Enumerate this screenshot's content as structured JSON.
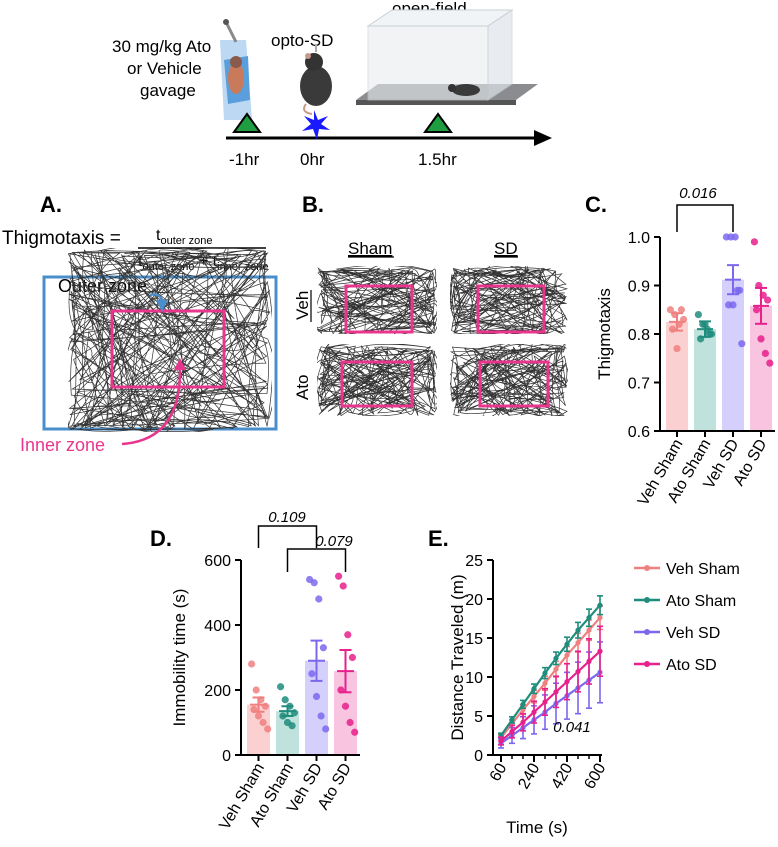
{
  "timeline": {
    "treatment_line1": "30 mg/kg Ato",
    "treatment_line2": "or Vehicle",
    "treatment_line3": "gavage",
    "optosd_label": "opto-SD",
    "openfield_label": "open-field",
    "t1": "-1hr",
    "t2": "0hr",
    "t3": "1.5hr"
  },
  "panel_a": {
    "letter": "A.",
    "formula_lhs": "Thigmotaxis =",
    "num_t": "t",
    "num_sub": "outer zone",
    "den_t1": "t",
    "den_sub1": "outer zone",
    "den_plus": " + t",
    "den_sub2": "inner zone",
    "outer_label": "Outer zone",
    "inner_label": "Inner zone"
  },
  "panel_b": {
    "letter": "B.",
    "col_sham": "Sham",
    "col_sd": "SD",
    "row_veh": "Veh",
    "row_ato": "Ato"
  },
  "groups": [
    "Veh Sham",
    "Ato Sham",
    "Veh SD",
    "Ato SD"
  ],
  "colors": {
    "veh_sham": "#f08080",
    "ato_sham": "#1f8c7c",
    "veh_sd": "#7b68ee",
    "ato_sd": "#e8208c",
    "veh_sham_bar": "#fbd0d0",
    "ato_sham_bar": "#bfe3dc",
    "veh_sd_bar": "#d4d0fb",
    "ato_sd_bar": "#f9c4df",
    "inner_box": "#e8368c",
    "outer_box": "#4a8fcc"
  },
  "chart_data": [
    {
      "id": "C",
      "letter": "C.",
      "type": "bar",
      "ylabel": "Thigmotaxis",
      "ylim": [
        0.6,
        1.0
      ],
      "yticks": [
        "0.6",
        "0.7",
        "0.8",
        "0.9",
        "1.0"
      ],
      "categories": [
        "Veh Sham",
        "Ato Sham",
        "Veh SD",
        "Ato SD"
      ],
      "values": [
        0.825,
        0.81,
        0.912,
        0.858
      ],
      "sem": [
        0.018,
        0.016,
        0.03,
        0.037
      ],
      "points": [
        [
          0.85,
          0.84,
          0.82,
          0.83,
          0.81,
          0.77,
          0.85
        ],
        [
          0.84,
          0.82,
          0.81,
          0.8,
          0.79,
          0.82,
          0.8
        ],
        [
          1.0,
          1.0,
          1.0,
          0.89,
          0.86,
          0.86,
          0.89,
          0.78
        ],
        [
          0.99,
          0.9,
          0.88,
          0.87,
          0.85,
          0.79,
          0.76,
          0.74
        ]
      ],
      "comparisons": [
        {
          "a": 0,
          "b": 2,
          "label": "0.016"
        }
      ]
    },
    {
      "id": "D",
      "letter": "D.",
      "type": "bar",
      "ylabel": "Immobility time (s)",
      "ylim": [
        0,
        600
      ],
      "yticks": [
        "0",
        "200",
        "400",
        "600"
      ],
      "categories": [
        "Veh Sham",
        "Ato Sham",
        "Veh SD",
        "Ato SD"
      ],
      "values": [
        155,
        135,
        290,
        258
      ],
      "sem": [
        22,
        15,
        62,
        65
      ],
      "points": [
        [
          280,
          200,
          170,
          150,
          140,
          120,
          100,
          80
        ],
        [
          210,
          170,
          150,
          130,
          120,
          100,
          90
        ],
        [
          540,
          530,
          480,
          330,
          250,
          180,
          120,
          80
        ],
        [
          550,
          520,
          370,
          300,
          200,
          150,
          100,
          70
        ]
      ],
      "comparisons": [
        {
          "a": 0,
          "b": 2,
          "label": "0.109"
        },
        {
          "a": 1,
          "b": 3,
          "label": "0.079"
        }
      ]
    },
    {
      "id": "E",
      "letter": "E.",
      "type": "line",
      "xlabel": "Time (s)",
      "ylabel": "Distance Traveled (m)",
      "xlim": [
        60,
        600
      ],
      "ylim": [
        0,
        25
      ],
      "xticks": [
        "60",
        "240",
        "420",
        "600"
      ],
      "yticks": [
        "0",
        "5",
        "10",
        "15",
        "20",
        "25"
      ],
      "x": [
        60,
        120,
        180,
        240,
        300,
        360,
        420,
        480,
        540,
        600
      ],
      "series": [
        {
          "name": "Veh Sham",
          "values": [
            2.2,
            4.0,
            5.8,
            7.5,
            9.2,
            11.0,
            12.8,
            14.4,
            16.0,
            17.6
          ],
          "err": [
            0.4,
            0.5,
            0.6,
            0.8,
            0.9,
            1.0,
            1.1,
            1.2,
            1.3,
            1.5
          ]
        },
        {
          "name": "Ato Sham",
          "values": [
            2.5,
            4.5,
            6.5,
            8.5,
            10.5,
            12.4,
            14.2,
            16.0,
            17.6,
            19.2
          ],
          "err": [
            0.3,
            0.4,
            0.5,
            0.6,
            0.7,
            0.8,
            0.9,
            1.0,
            1.1,
            1.2
          ]
        },
        {
          "name": "Veh SD",
          "values": [
            1.5,
            2.5,
            3.5,
            4.5,
            5.5,
            6.6,
            7.6,
            8.6,
            9.6,
            10.6
          ],
          "err": [
            0.6,
            1.0,
            1.4,
            1.8,
            2.2,
            2.6,
            3.0,
            3.3,
            3.6,
            3.9
          ]
        },
        {
          "name": "Ato SD",
          "values": [
            1.8,
            3.0,
            4.2,
            5.5,
            6.8,
            8.1,
            9.4,
            10.7,
            12.0,
            13.3
          ],
          "err": [
            0.5,
            0.8,
            1.1,
            1.4,
            1.7,
            2.0,
            2.3,
            2.6,
            2.9,
            3.2
          ]
        }
      ],
      "annotation": "0.041"
    }
  ]
}
